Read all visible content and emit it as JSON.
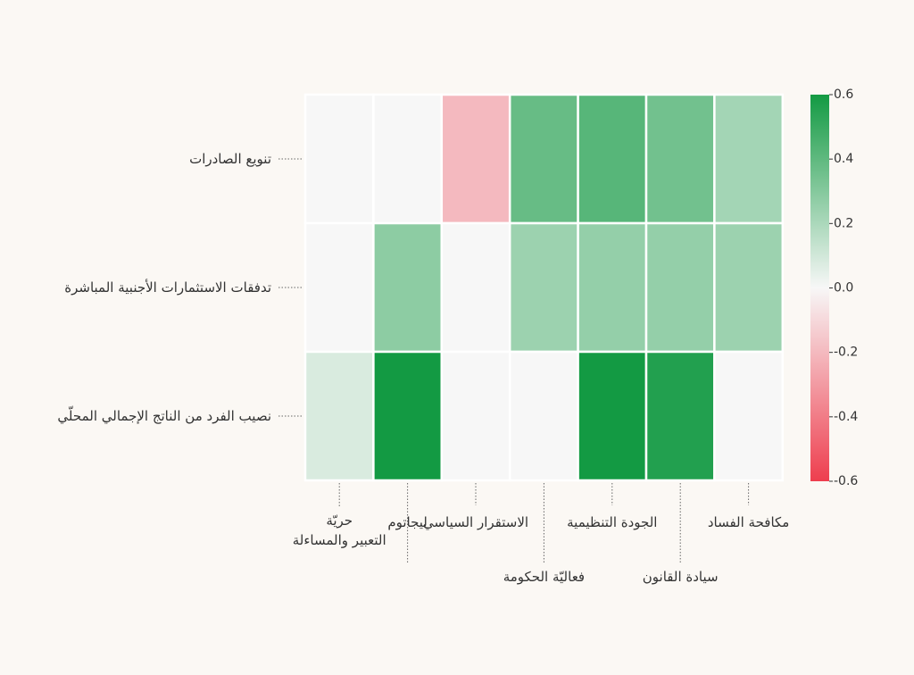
{
  "chart_data": {
    "type": "heatmap",
    "rows": [
      "تنويع الصادرات",
      "تدفقات الاستثمارات الأجنبية المباشرة",
      "نصيب الفرد من الناتج الإجمالي المحلّي"
    ],
    "columns": [
      "حريّة التعبير والمساءلة",
      "ليجاتوم",
      "الاستقرار السياسي",
      "فعاليّة الحكومة",
      "الجودة التنظيمية",
      "سيادة القانون",
      "مكافحة الفساد"
    ],
    "values": [
      [
        0.0,
        0.0,
        -0.2,
        0.38,
        0.42,
        0.35,
        0.22
      ],
      [
        0.0,
        0.28,
        0.0,
        0.24,
        0.26,
        0.26,
        0.24
      ],
      [
        0.08,
        0.6,
        0.0,
        0.0,
        0.6,
        0.56,
        0.0
      ]
    ],
    "colorbar": {
      "min": -0.6,
      "max": 0.6,
      "ticks": [
        "0.6",
        "0.4",
        "0.2",
        "0.0",
        "-0.2",
        "-0.4",
        "-0.6"
      ],
      "colors": {
        "negative": "#ee3e4e",
        "neutral": "#f7f7f7",
        "positive": "#139a43"
      }
    }
  }
}
